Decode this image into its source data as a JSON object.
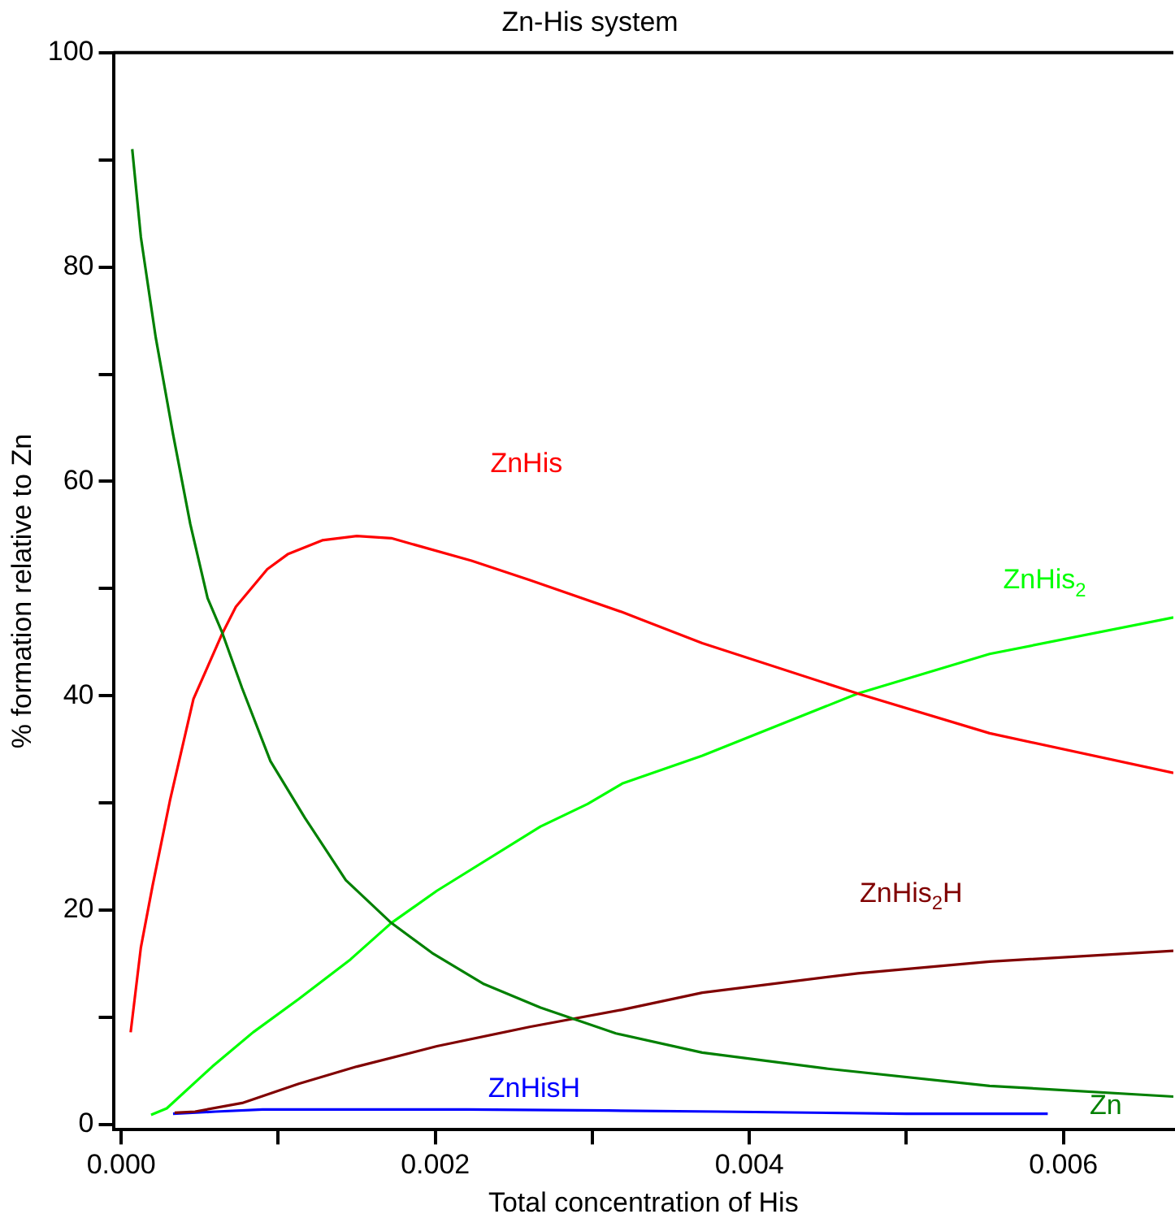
{
  "chart_data": {
    "type": "line",
    "title": "Zn-His system",
    "xlabel": "Total concentration of His",
    "ylabel": "% formation relative to Zn",
    "xlim": [
      -5e-05,
      0.0067
    ],
    "ylim": [
      -0.5,
      100
    ],
    "xticks": [
      {
        "value": 0,
        "label": "0.000"
      },
      {
        "value": 0.001,
        "label": null
      },
      {
        "value": 0.002,
        "label": "0.002"
      },
      {
        "value": 0.003,
        "label": null
      },
      {
        "value": 0.004,
        "label": "0.004"
      },
      {
        "value": 0.005,
        "label": null
      },
      {
        "value": 0.006,
        "label": "0.006"
      }
    ],
    "yticks": [
      0,
      {
        "value": 10,
        "label": null
      },
      20,
      {
        "value": 30,
        "label": null
      },
      40,
      {
        "value": 50,
        "label": null
      },
      60,
      {
        "value": 70,
        "label": null
      },
      80,
      {
        "value": 90,
        "label": null
      },
      100
    ],
    "grid": false,
    "legend": false,
    "marker": "none",
    "line_style": "solid",
    "series": [
      {
        "name": "Zn",
        "color": "#008000",
        "x": [
          7e-05,
          0.000125,
          0.00022,
          0.00033,
          0.00044,
          0.00055,
          0.00064,
          0.00077,
          0.00095,
          0.00117,
          0.00143,
          0.00172,
          0.00198,
          0.00231,
          0.00267,
          0.00315,
          0.0037,
          0.0045,
          0.00553,
          0.0067
        ],
        "values": [
          91,
          82.8,
          73.4,
          64.4,
          56,
          49.1,
          46,
          40.7,
          33.9,
          28.6,
          22.8,
          18.8,
          16,
          13.1,
          10.9,
          8.5,
          6.7,
          5.2,
          3.6,
          2.6
        ]
      },
      {
        "name": "ZnHis",
        "color": "#ff0000",
        "x": [
          6e-05,
          0.000125,
          0.0002,
          0.00031,
          0.00046,
          0.00064,
          0.00073,
          0.00093,
          0.00106,
          0.00128,
          0.0015,
          0.00172,
          0.00223,
          0.0026,
          0.00319,
          0.0037,
          0.00469,
          0.00553,
          0.0067
        ],
        "values": [
          8.6,
          16.5,
          22.3,
          30.2,
          39.7,
          45.7,
          48.3,
          51.8,
          53.2,
          54.5,
          54.9,
          54.7,
          52.6,
          50.8,
          47.8,
          44.9,
          40.2,
          36.5,
          32.8
        ]
      },
      {
        "name": "ZnHis$_{2}$",
        "color": "#00ff00",
        "x": [
          0.00019,
          0.00029,
          0.00058,
          0.00084,
          0.00113,
          0.00146,
          0.00172,
          0.00201,
          0.00267,
          0.00297,
          0.00319,
          0.0037,
          0.00469,
          0.00553,
          0.0067
        ],
        "values": [
          0.9,
          1.5,
          5.4,
          8.6,
          11.7,
          15.4,
          18.8,
          21.8,
          27.8,
          29.9,
          31.8,
          34.4,
          40.2,
          43.9,
          47.3
        ]
      },
      {
        "name": "ZnHis$_{2}$H",
        "color": "#800000",
        "x": [
          0.00034,
          0.00047,
          0.00077,
          0.00113,
          0.0015,
          0.00201,
          0.0026,
          0.00319,
          0.0037,
          0.00469,
          0.00553,
          0.0067
        ],
        "values": [
          1.1,
          1.2,
          2,
          3.8,
          5.4,
          7.3,
          9.1,
          10.7,
          12.3,
          14.1,
          15.2,
          16.2
        ]
      },
      {
        "name": "ZnHisH",
        "color": "#0000ff",
        "x": [
          0.00033,
          0.0006,
          0.0009,
          0.0022,
          0.0031,
          0.0038,
          0.005,
          0.0059
        ],
        "values": [
          1,
          1.2,
          1.4,
          1.4,
          1.3,
          1.2,
          1,
          1
        ]
      }
    ]
  }
}
